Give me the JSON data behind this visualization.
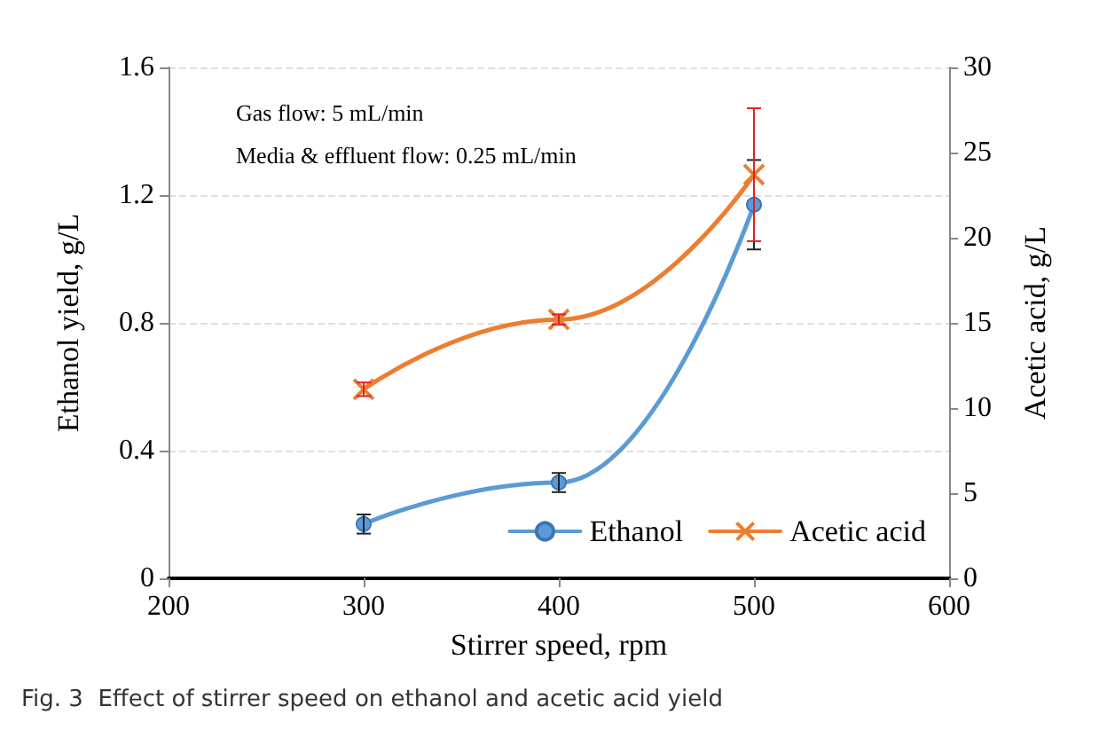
{
  "chart_data": {
    "type": "line",
    "x": [
      300,
      400,
      500
    ],
    "xlabel": "Stirrer speed, rpm",
    "ylabel": "Ethanol yield, g/L",
    "y2label": "Acetic acid, g/L",
    "xlim": [
      200,
      600
    ],
    "xticks": [
      200,
      300,
      400,
      500,
      600
    ],
    "ylim": [
      0,
      1.6
    ],
    "yticks": [
      0,
      0.4,
      0.8,
      1.2,
      1.6
    ],
    "y2lim": [
      0,
      30
    ],
    "y2ticks": [
      0,
      5,
      10,
      15,
      20,
      25,
      30
    ],
    "series": [
      {
        "name": "Ethanol",
        "color": "#5b9bd5",
        "values": [
          0.17,
          0.3,
          1.17
        ],
        "errors": [
          0.03,
          0.03,
          0.14
        ],
        "marker": "circle"
      },
      {
        "name": "Acetic acid",
        "color": "#ed7d31",
        "axis": "y2",
        "values": [
          11.1,
          15.2,
          23.7
        ],
        "errors": [
          0.4,
          0.3,
          3.9
        ],
        "marker": "cross"
      }
    ],
    "annotations": [
      "Gas flow: 5 mL/min",
      "Media & effluent flow: 0.25 mL/min",
      "Fig. 3  Effect of stirrer speed on ethanol and acetic acid yield"
    ],
    "grid": "y",
    "legend": "bottom right",
    "line_style": "solid"
  }
}
